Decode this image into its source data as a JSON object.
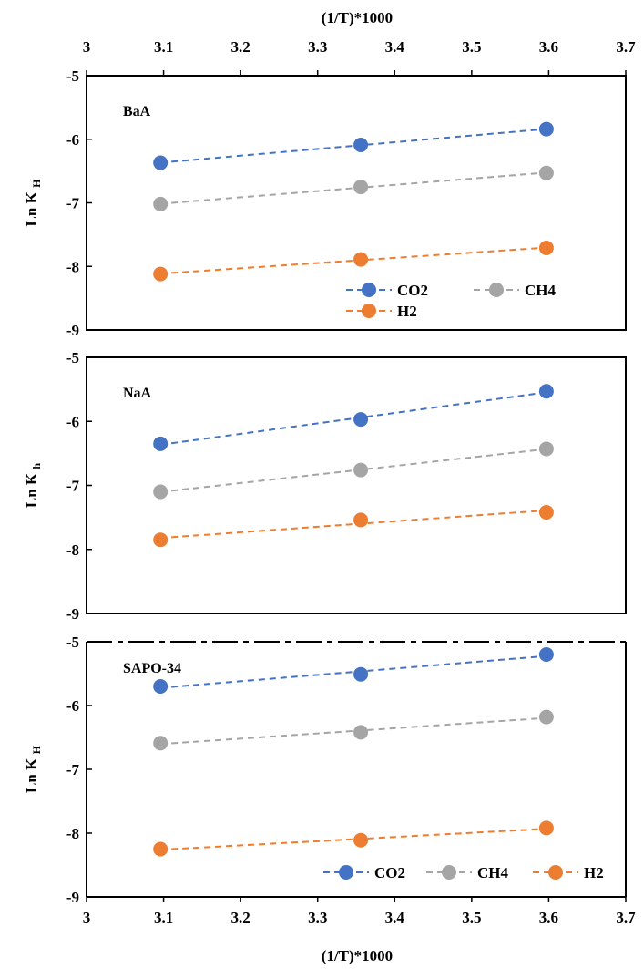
{
  "figure": {
    "top_axis_label": "(1/T)*1000",
    "bottom_axis_label": "(1/T)*1000"
  },
  "chart_data": [
    {
      "type": "scatter",
      "panel_label": "BaA",
      "ylabel_main": "Ln K",
      "ylabel_sub": "H",
      "xlim": [
        3,
        3.7
      ],
      "ylim": [
        -9,
        -5
      ],
      "x_ticks": [
        3,
        3.1,
        3.2,
        3.3,
        3.4,
        3.5,
        3.6,
        3.7
      ],
      "y_ticks": [
        -5,
        -6,
        -7,
        -8,
        -9
      ],
      "x_tick_labels_position": "top",
      "legend_placement": "bottom-right",
      "legend_layout": "two-rows",
      "grid": false,
      "trendlines": "dashed linear fit",
      "series": [
        {
          "name": "CO2",
          "color": "#4472C4",
          "x": [
            3.096,
            3.356,
            3.597
          ],
          "y": [
            -6.37,
            -6.09,
            -5.84
          ]
        },
        {
          "name": "CH4",
          "color": "#A5A5A5",
          "x": [
            3.096,
            3.356,
            3.597
          ],
          "y": [
            -7.02,
            -6.75,
            -6.53
          ]
        },
        {
          "name": "H2",
          "color": "#ED7D31",
          "x": [
            3.096,
            3.356,
            3.597
          ],
          "y": [
            -8.12,
            -7.89,
            -7.71
          ]
        }
      ]
    },
    {
      "type": "scatter",
      "panel_label": "NaA",
      "ylabel_main": "Ln K",
      "ylabel_sub": "h",
      "xlim": [
        3,
        3.7
      ],
      "ylim": [
        -9,
        -5
      ],
      "y_ticks": [
        -5,
        -6,
        -7,
        -8,
        -9
      ],
      "grid": false,
      "trendlines": "dashed linear fit",
      "series": [
        {
          "name": "CO2",
          "color": "#4472C4",
          "x": [
            3.096,
            3.356,
            3.597
          ],
          "y": [
            -6.35,
            -5.97,
            -5.53
          ]
        },
        {
          "name": "CH4",
          "color": "#A5A5A5",
          "x": [
            3.096,
            3.356,
            3.597
          ],
          "y": [
            -7.1,
            -6.76,
            -6.43
          ]
        },
        {
          "name": "H2",
          "color": "#ED7D31",
          "x": [
            3.096,
            3.356,
            3.597
          ],
          "y": [
            -7.85,
            -7.54,
            -7.42
          ]
        }
      ]
    },
    {
      "type": "scatter",
      "panel_label": "SAPO-34",
      "ylabel_main": "Ln K",
      "ylabel_sub": "H",
      "xlim": [
        3,
        3.7
      ],
      "ylim": [
        -9,
        -5
      ],
      "x_ticks": [
        3,
        3.1,
        3.2,
        3.3,
        3.4,
        3.5,
        3.6,
        3.7
      ],
      "y_ticks": [
        -5,
        -6,
        -7,
        -8,
        -9
      ],
      "x_tick_labels_position": "bottom",
      "legend_placement": "bottom-right",
      "legend_layout": "one-row",
      "grid": false,
      "trendlines": "dashed linear fit",
      "series": [
        {
          "name": "CO2",
          "color": "#4472C4",
          "x": [
            3.096,
            3.356,
            3.597
          ],
          "y": [
            -5.7,
            -5.51,
            -5.2
          ]
        },
        {
          "name": "CH4",
          "color": "#A5A5A5",
          "x": [
            3.096,
            3.356,
            3.597
          ],
          "y": [
            -6.59,
            -6.42,
            -6.18
          ]
        },
        {
          "name": "H2",
          "color": "#ED7D31",
          "x": [
            3.096,
            3.356,
            3.597
          ],
          "y": [
            -8.25,
            -8.11,
            -7.92
          ]
        }
      ]
    }
  ]
}
